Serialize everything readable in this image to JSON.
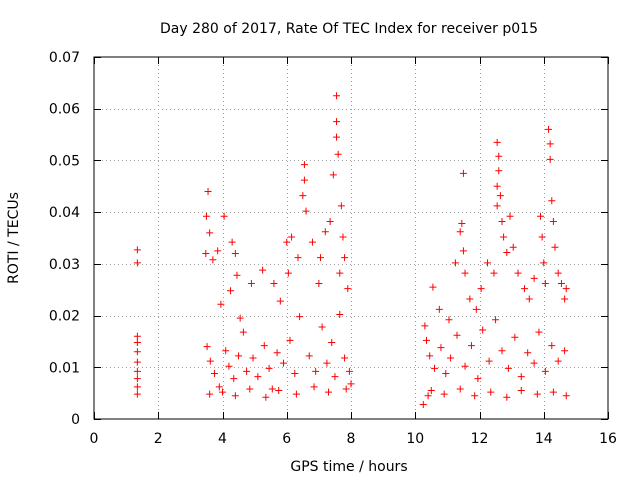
{
  "chart_data": {
    "type": "scatter",
    "title": "Day 280 of 2017, Rate Of TEC Index for receiver p015",
    "xlabel": "GPS time / hours",
    "ylabel": "ROTI / TECUs",
    "xlim": [
      0,
      16
    ],
    "ylim": [
      0,
      0.07
    ],
    "grid": true,
    "x_ticks": [
      0,
      2,
      4,
      6,
      8,
      10,
      12,
      14,
      16
    ],
    "x_tick_labels": [
      "0",
      "2",
      "4",
      "6",
      "8",
      "10",
      "12",
      "14",
      "16"
    ],
    "y_ticks": [
      0,
      0.01,
      0.02,
      0.03,
      0.04,
      0.05,
      0.06,
      0.07
    ],
    "y_tick_labels": [
      "0",
      "0.01",
      "0.02",
      "0.03",
      "0.04",
      "0.05",
      "0.06",
      "0.07"
    ],
    "marker": "plus",
    "color": "#ff0000",
    "series": [
      {
        "name": "ROTI",
        "points": [
          [
            1.35,
            0.0327
          ],
          [
            1.35,
            0.0302
          ],
          [
            1.35,
            0.016
          ],
          [
            1.35,
            0.0148
          ],
          [
            1.35,
            0.013
          ],
          [
            1.35,
            0.011
          ],
          [
            1.35,
            0.0092
          ],
          [
            1.35,
            0.0078
          ],
          [
            1.35,
            0.0062
          ],
          [
            1.35,
            0.0048
          ],
          [
            3.55,
            0.044
          ],
          [
            3.5,
            0.0392
          ],
          [
            3.6,
            0.036
          ],
          [
            3.48,
            0.032
          ],
          [
            3.7,
            0.0308
          ],
          [
            3.85,
            0.0325
          ],
          [
            4.05,
            0.0392
          ],
          [
            4.3,
            0.0342
          ],
          [
            4.4,
            0.032
          ],
          [
            4.45,
            0.0278
          ],
          [
            4.25,
            0.0248
          ],
          [
            3.95,
            0.0222
          ],
          [
            4.55,
            0.0195
          ],
          [
            5.25,
            0.0288
          ],
          [
            4.9,
            0.0262
          ],
          [
            5.6,
            0.0262
          ],
          [
            6.0,
            0.0342
          ],
          [
            6.15,
            0.0352
          ],
          [
            6.35,
            0.0312
          ],
          [
            6.05,
            0.0282
          ],
          [
            6.55,
            0.0492
          ],
          [
            6.55,
            0.0462
          ],
          [
            6.5,
            0.0432
          ],
          [
            6.6,
            0.0402
          ],
          [
            6.8,
            0.0342
          ],
          [
            7.05,
            0.0312
          ],
          [
            7.2,
            0.0362
          ],
          [
            7.35,
            0.0382
          ],
          [
            7.55,
            0.0625
          ],
          [
            7.55,
            0.0575
          ],
          [
            7.55,
            0.0545
          ],
          [
            7.6,
            0.0512
          ],
          [
            7.45,
            0.0472
          ],
          [
            7.7,
            0.0412
          ],
          [
            7.75,
            0.0352
          ],
          [
            7.8,
            0.0312
          ],
          [
            7.65,
            0.0282
          ],
          [
            7.9,
            0.0252
          ],
          [
            7.0,
            0.0262
          ],
          [
            5.8,
            0.0228
          ],
          [
            3.52,
            0.014
          ],
          [
            3.62,
            0.0112
          ],
          [
            3.75,
            0.0088
          ],
          [
            3.9,
            0.0062
          ],
          [
            4.1,
            0.0132
          ],
          [
            4.2,
            0.0102
          ],
          [
            4.35,
            0.0078
          ],
          [
            4.5,
            0.0122
          ],
          [
            4.65,
            0.0168
          ],
          [
            4.75,
            0.0092
          ],
          [
            4.95,
            0.0118
          ],
          [
            5.1,
            0.0082
          ],
          [
            5.3,
            0.0142
          ],
          [
            5.45,
            0.0098
          ],
          [
            5.55,
            0.0058
          ],
          [
            5.7,
            0.0128
          ],
          [
            5.9,
            0.0108
          ],
          [
            6.1,
            0.0152
          ],
          [
            6.25,
            0.0088
          ],
          [
            6.4,
            0.0198
          ],
          [
            6.7,
            0.0122
          ],
          [
            6.9,
            0.0092
          ],
          [
            7.1,
            0.0178
          ],
          [
            7.25,
            0.0108
          ],
          [
            7.4,
            0.0148
          ],
          [
            7.5,
            0.0082
          ],
          [
            7.65,
            0.0202
          ],
          [
            7.8,
            0.0118
          ],
          [
            7.95,
            0.0092
          ],
          [
            8.0,
            0.0068
          ],
          [
            3.6,
            0.0048
          ],
          [
            4.0,
            0.0052
          ],
          [
            4.4,
            0.0045
          ],
          [
            4.85,
            0.0058
          ],
          [
            5.35,
            0.0042
          ],
          [
            5.75,
            0.0055
          ],
          [
            6.3,
            0.0048
          ],
          [
            6.85,
            0.0062
          ],
          [
            7.3,
            0.0052
          ],
          [
            7.85,
            0.0058
          ],
          [
            10.25,
            0.0028
          ],
          [
            10.4,
            0.0045
          ],
          [
            10.3,
            0.018
          ],
          [
            10.55,
            0.0255
          ],
          [
            10.75,
            0.0212
          ],
          [
            11.05,
            0.0192
          ],
          [
            11.25,
            0.0302
          ],
          [
            11.4,
            0.0362
          ],
          [
            11.45,
            0.0378
          ],
          [
            11.5,
            0.0325
          ],
          [
            11.5,
            0.0475
          ],
          [
            11.55,
            0.0282
          ],
          [
            11.7,
            0.0232
          ],
          [
            11.9,
            0.0212
          ],
          [
            12.05,
            0.0252
          ],
          [
            12.25,
            0.0302
          ],
          [
            12.45,
            0.0282
          ],
          [
            12.55,
            0.0535
          ],
          [
            12.6,
            0.0508
          ],
          [
            12.6,
            0.048
          ],
          [
            12.55,
            0.045
          ],
          [
            12.65,
            0.0432
          ],
          [
            12.55,
            0.0412
          ],
          [
            12.7,
            0.0382
          ],
          [
            12.75,
            0.0352
          ],
          [
            12.85,
            0.0322
          ],
          [
            12.95,
            0.0392
          ],
          [
            13.05,
            0.0332
          ],
          [
            13.2,
            0.0282
          ],
          [
            13.4,
            0.0252
          ],
          [
            13.55,
            0.0232
          ],
          [
            13.7,
            0.0272
          ],
          [
            13.9,
            0.0392
          ],
          [
            13.95,
            0.0352
          ],
          [
            14.0,
            0.0302
          ],
          [
            14.05,
            0.0262
          ],
          [
            14.15,
            0.056
          ],
          [
            14.2,
            0.0532
          ],
          [
            14.2,
            0.0502
          ],
          [
            14.25,
            0.0422
          ],
          [
            14.3,
            0.0382
          ],
          [
            14.35,
            0.0332
          ],
          [
            14.45,
            0.0282
          ],
          [
            14.55,
            0.0262
          ],
          [
            14.7,
            0.0252
          ],
          [
            14.65,
            0.0232
          ],
          [
            10.35,
            0.0152
          ],
          [
            10.45,
            0.0122
          ],
          [
            10.6,
            0.0098
          ],
          [
            10.8,
            0.0138
          ],
          [
            10.95,
            0.0088
          ],
          [
            11.1,
            0.0118
          ],
          [
            11.3,
            0.0162
          ],
          [
            11.55,
            0.0102
          ],
          [
            11.75,
            0.0142
          ],
          [
            11.95,
            0.0078
          ],
          [
            12.1,
            0.0172
          ],
          [
            12.3,
            0.0112
          ],
          [
            12.5,
            0.0192
          ],
          [
            12.7,
            0.0132
          ],
          [
            12.9,
            0.0098
          ],
          [
            13.1,
            0.0158
          ],
          [
            13.3,
            0.0082
          ],
          [
            13.5,
            0.0128
          ],
          [
            13.7,
            0.0108
          ],
          [
            13.85,
            0.0168
          ],
          [
            14.05,
            0.0092
          ],
          [
            14.25,
            0.0142
          ],
          [
            14.45,
            0.0112
          ],
          [
            14.65,
            0.0132
          ],
          [
            10.5,
            0.0055
          ],
          [
            10.9,
            0.0048
          ],
          [
            11.4,
            0.0058
          ],
          [
            11.85,
            0.0045
          ],
          [
            12.35,
            0.0052
          ],
          [
            12.85,
            0.0042
          ],
          [
            13.3,
            0.0055
          ],
          [
            13.8,
            0.0048
          ],
          [
            14.3,
            0.0052
          ],
          [
            14.7,
            0.0045
          ]
        ]
      }
    ]
  }
}
